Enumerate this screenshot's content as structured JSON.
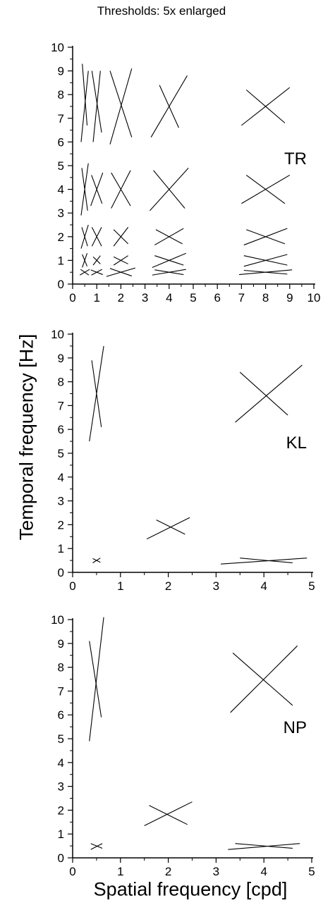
{
  "figure": {
    "title": "Thresholds: 5x enlarged",
    "ylabel": "Temporal frequency [Hz]",
    "xlabel": "Spatial frequency [cpd]"
  },
  "chart_data": [
    {
      "type": "scatter",
      "panel_label": "TR",
      "xlim": [
        0,
        10
      ],
      "ylim": [
        0,
        10
      ],
      "xticks": [
        0,
        1,
        2,
        3,
        4,
        5,
        6,
        7,
        8,
        9,
        10
      ],
      "yticks": [
        0,
        1,
        2,
        3,
        4,
        5,
        6,
        7,
        8,
        9,
        10
      ],
      "grid": false,
      "crosses": [
        {
          "x": 0.5,
          "y": 0.5,
          "l1": [
            [
              0.3,
              0.38
            ],
            [
              0.7,
              0.62
            ]
          ],
          "l2": [
            [
              0.33,
              0.62
            ],
            [
              0.67,
              0.38
            ]
          ]
        },
        {
          "x": 1,
          "y": 0.5,
          "l1": [
            [
              0.75,
              0.6
            ],
            [
              1.25,
              0.4
            ]
          ],
          "l2": [
            [
              0.78,
              0.38
            ],
            [
              1.22,
              0.62
            ]
          ]
        },
        {
          "x": 2,
          "y": 0.5,
          "l1": [
            [
              1.4,
              0.32
            ],
            [
              2.6,
              0.68
            ]
          ],
          "l2": [
            [
              1.55,
              0.66
            ],
            [
              2.45,
              0.34
            ]
          ]
        },
        {
          "x": 4,
          "y": 0.5,
          "l1": [
            [
              3.3,
              0.38
            ],
            [
              4.7,
              0.62
            ]
          ],
          "l2": [
            [
              3.4,
              0.6
            ],
            [
              4.6,
              0.4
            ]
          ]
        },
        {
          "x": 8,
          "y": 0.5,
          "l1": [
            [
              6.9,
              0.4
            ],
            [
              9.1,
              0.6
            ]
          ],
          "l2": [
            [
              7.1,
              0.58
            ],
            [
              8.9,
              0.42
            ]
          ]
        },
        {
          "x": 0.5,
          "y": 1.0,
          "l1": [
            [
              0.4,
              0.7
            ],
            [
              0.6,
              1.3
            ]
          ],
          "l2": [
            [
              0.4,
              1.25
            ],
            [
              0.6,
              0.75
            ]
          ]
        },
        {
          "x": 1,
          "y": 1.0,
          "l1": [
            [
              0.85,
              0.8
            ],
            [
              1.15,
              1.2
            ]
          ],
          "l2": [
            [
              0.85,
              1.15
            ],
            [
              1.15,
              0.85
            ]
          ]
        },
        {
          "x": 2,
          "y": 1.0,
          "l1": [
            [
              1.7,
              0.8
            ],
            [
              2.3,
              1.2
            ]
          ],
          "l2": [
            [
              1.7,
              1.15
            ],
            [
              2.3,
              0.85
            ]
          ]
        },
        {
          "x": 4,
          "y": 1.0,
          "l1": [
            [
              3.3,
              0.7
            ],
            [
              4.7,
              1.3
            ]
          ],
          "l2": [
            [
              3.4,
              1.2
            ],
            [
              4.6,
              0.8
            ]
          ]
        },
        {
          "x": 8,
          "y": 1.0,
          "l1": [
            [
              7.1,
              0.75
            ],
            [
              8.9,
              1.25
            ]
          ],
          "l2": [
            [
              7.1,
              1.2
            ],
            [
              8.9,
              0.8
            ]
          ]
        },
        {
          "x": 0.5,
          "y": 2.0,
          "l1": [
            [
              0.35,
              1.5
            ],
            [
              0.65,
              2.5
            ]
          ],
          "l2": [
            [
              0.38,
              2.4
            ],
            [
              0.62,
              1.6
            ]
          ]
        },
        {
          "x": 1,
          "y": 2.0,
          "l1": [
            [
              0.8,
              1.6
            ],
            [
              1.2,
              2.4
            ]
          ],
          "l2": [
            [
              0.8,
              2.4
            ],
            [
              1.2,
              1.6
            ]
          ]
        },
        {
          "x": 2,
          "y": 2.0,
          "l1": [
            [
              1.7,
              1.6
            ],
            [
              2.3,
              2.4
            ]
          ],
          "l2": [
            [
              1.7,
              2.3
            ],
            [
              2.3,
              1.7
            ]
          ]
        },
        {
          "x": 4,
          "y": 2.0,
          "l1": [
            [
              3.4,
              1.65
            ],
            [
              4.6,
              2.35
            ]
          ],
          "l2": [
            [
              3.45,
              2.3
            ],
            [
              4.55,
              1.7
            ]
          ]
        },
        {
          "x": 8,
          "y": 2.0,
          "l1": [
            [
              7.1,
              1.65
            ],
            [
              8.9,
              2.35
            ]
          ],
          "l2": [
            [
              7.2,
              2.3
            ],
            [
              8.8,
              1.7
            ]
          ]
        },
        {
          "x": 0.5,
          "y": 4.0,
          "l1": [
            [
              0.35,
              2.9
            ],
            [
              0.65,
              5.1
            ]
          ],
          "l2": [
            [
              0.38,
              4.9
            ],
            [
              0.62,
              3.1
            ]
          ]
        },
        {
          "x": 1,
          "y": 4.0,
          "l1": [
            [
              0.75,
              3.3
            ],
            [
              1.25,
              4.7
            ]
          ],
          "l2": [
            [
              0.78,
              4.6
            ],
            [
              1.22,
              3.4
            ]
          ]
        },
        {
          "x": 2,
          "y": 4.0,
          "l1": [
            [
              1.6,
              3.2
            ],
            [
              2.4,
              4.8
            ]
          ],
          "l2": [
            [
              1.6,
              4.7
            ],
            [
              2.4,
              3.3
            ]
          ]
        },
        {
          "x": 4,
          "y": 4.0,
          "l1": [
            [
              3.2,
              3.1
            ],
            [
              4.8,
              4.9
            ]
          ],
          "l2": [
            [
              3.35,
              4.8
            ],
            [
              4.65,
              3.2
            ]
          ]
        },
        {
          "x": 8,
          "y": 4.0,
          "l1": [
            [
              7.0,
              3.4
            ],
            [
              9.0,
              4.6
            ]
          ],
          "l2": [
            [
              7.2,
              4.6
            ],
            [
              8.8,
              3.4
            ]
          ]
        },
        {
          "x": 0.5,
          "y": 8.0,
          "l1": [
            [
              0.35,
              6.0
            ],
            [
              0.65,
              9.0
            ]
          ],
          "l2": [
            [
              0.4,
              9.3
            ],
            [
              0.6,
              6.7
            ]
          ]
        },
        {
          "x": 1,
          "y": 8.0,
          "l1": [
            [
              0.85,
              6.0
            ],
            [
              1.15,
              9.0
            ]
          ],
          "l2": [
            [
              0.8,
              9.0
            ],
            [
              1.2,
              6.4
            ]
          ]
        },
        {
          "x": 2,
          "y": 8.0,
          "l1": [
            [
              1.55,
              5.9
            ],
            [
              2.45,
              9.1
            ]
          ],
          "l2": [
            [
              1.55,
              9.0
            ],
            [
              2.45,
              6.2
            ]
          ]
        },
        {
          "x": 4,
          "y": 8.0,
          "l1": [
            [
              3.25,
              6.2
            ],
            [
              4.75,
              8.8
            ]
          ],
          "l2": [
            [
              3.6,
              8.4
            ],
            [
              4.4,
              6.6
            ]
          ]
        },
        {
          "x": 8,
          "y": 8.0,
          "l1": [
            [
              7.0,
              6.7
            ],
            [
              9.0,
              8.3
            ]
          ],
          "l2": [
            [
              7.2,
              8.2
            ],
            [
              8.8,
              6.8
            ]
          ]
        }
      ]
    },
    {
      "type": "scatter",
      "panel_label": "KL",
      "xlim": [
        0,
        5
      ],
      "ylim": [
        0,
        10
      ],
      "xticks": [
        0,
        1,
        2,
        3,
        4,
        5
      ],
      "yticks": [
        0,
        1,
        2,
        3,
        4,
        5,
        6,
        7,
        8,
        9,
        10
      ],
      "grid": false,
      "crosses": [
        {
          "x": 0.5,
          "y": 0.5,
          "l1": [
            [
              0.42,
              0.4
            ],
            [
              0.58,
              0.6
            ]
          ],
          "l2": [
            [
              0.42,
              0.58
            ],
            [
              0.58,
              0.42
            ]
          ]
        },
        {
          "x": 2,
          "y": 2.0,
          "l1": [
            [
              1.55,
              1.4
            ],
            [
              2.45,
              2.3
            ]
          ],
          "l2": [
            [
              1.75,
              2.2
            ],
            [
              2.35,
              1.6
            ]
          ]
        },
        {
          "x": 4,
          "y": 0.5,
          "l1": [
            [
              3.1,
              0.35
            ],
            [
              4.9,
              0.6
            ]
          ],
          "l2": [
            [
              3.5,
              0.6
            ],
            [
              4.6,
              0.4
            ]
          ]
        },
        {
          "x": 0.5,
          "y": 8.0,
          "l1": [
            [
              0.35,
              5.5
            ],
            [
              0.65,
              9.5
            ]
          ],
          "l2": [
            [
              0.4,
              8.9
            ],
            [
              0.6,
              6.1
            ]
          ]
        },
        {
          "x": 4,
          "y": 8.0,
          "l1": [
            [
              3.4,
              6.3
            ],
            [
              4.8,
              8.7
            ]
          ],
          "l2": [
            [
              3.5,
              8.4
            ],
            [
              4.5,
              6.6
            ]
          ]
        }
      ]
    },
    {
      "type": "scatter",
      "panel_label": "NP",
      "xlim": [
        0,
        5
      ],
      "ylim": [
        0,
        10
      ],
      "xticks": [
        0,
        1,
        2,
        3,
        4,
        5
      ],
      "yticks": [
        0,
        1,
        2,
        3,
        4,
        5,
        6,
        7,
        8,
        9,
        10
      ],
      "grid": false,
      "crosses": [
        {
          "x": 0.5,
          "y": 0.5,
          "l1": [
            [
              0.38,
              0.35
            ],
            [
              0.62,
              0.6
            ]
          ],
          "l2": [
            [
              0.38,
              0.6
            ],
            [
              0.62,
              0.4
            ]
          ]
        },
        {
          "x": 2,
          "y": 2.0,
          "l1": [
            [
              1.5,
              1.35
            ],
            [
              2.5,
              2.35
            ]
          ],
          "l2": [
            [
              1.6,
              2.2
            ],
            [
              2.4,
              1.4
            ]
          ]
        },
        {
          "x": 4,
          "y": 0.5,
          "l1": [
            [
              3.25,
              0.35
            ],
            [
              4.75,
              0.6
            ]
          ],
          "l2": [
            [
              3.4,
              0.6
            ],
            [
              4.6,
              0.4
            ]
          ]
        },
        {
          "x": 0.5,
          "y": 8.0,
          "l1": [
            [
              0.35,
              4.9
            ],
            [
              0.65,
              10.1
            ]
          ],
          "l2": [
            [
              0.35,
              9.1
            ],
            [
              0.6,
              5.9
            ]
          ]
        },
        {
          "x": 4,
          "y": 8.0,
          "l1": [
            [
              3.3,
              6.1
            ],
            [
              4.7,
              8.9
            ]
          ],
          "l2": [
            [
              3.35,
              8.6
            ],
            [
              4.6,
              6.4
            ]
          ]
        }
      ]
    }
  ]
}
